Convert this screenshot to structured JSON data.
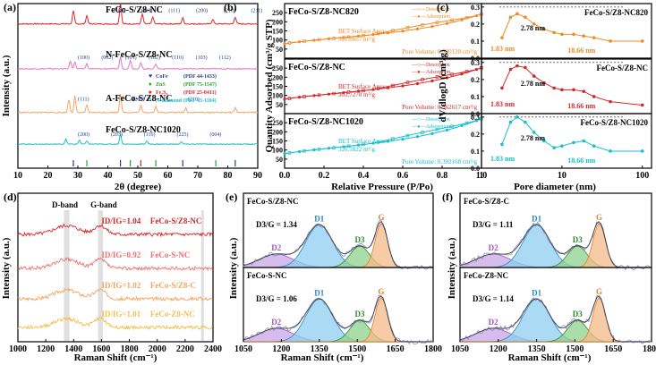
{
  "chart_data": [
    {
      "id": "a",
      "type": "line",
      "panel_label": "(a)",
      "xlabel": "2θ (degree)",
      "ylabel": "Intensity (a.u.)",
      "xlim": [
        10,
        90
      ],
      "xticks": [
        "10",
        "20",
        "30",
        "40",
        "50",
        "60",
        "70",
        "80",
        "90"
      ],
      "series": [
        {
          "name": "FeCo-S/Z8-NC",
          "color": "#d62728",
          "peaks": [
            {
              "x": 28.5,
              "h": 0.55
            },
            {
              "x": 33,
              "h": 0.35
            },
            {
              "x": 44.2,
              "h": 0.9
            },
            {
              "x": 51.5,
              "h": 0.4
            },
            {
              "x": 55,
              "h": 0.3
            },
            {
              "x": 65,
              "h": 0.25
            },
            {
              "x": 75,
              "h": 0.2
            },
            {
              "x": 82.5,
              "h": 0.3
            }
          ],
          "peak_labels": [
            "(100)",
            "(110)",
            "(111)",
            "(200)",
            "(210)",
            "(211)"
          ]
        },
        {
          "name": "N-FeCo-S/Z8-NC",
          "color": "#e377c2",
          "peaks": [
            {
              "x": 27.5,
              "h": 0.4
            },
            {
              "x": 29,
              "h": 0.35
            },
            {
              "x": 33,
              "h": 0.25
            },
            {
              "x": 44.2,
              "h": 0.6
            },
            {
              "x": 47.5,
              "h": 0.45
            },
            {
              "x": 51,
              "h": 0.3
            },
            {
              "x": 56,
              "h": 0.25
            }
          ],
          "peak_labels": [
            "(100)",
            "(002)",
            "(101)",
            "(102)",
            "(110)",
            "(103)",
            "(112)"
          ]
        },
        {
          "name": "A-FeCo-S/Z8-NC",
          "color": "#f4a460",
          "peaks": [
            {
              "x": 27,
              "h": 0.55
            },
            {
              "x": 29,
              "h": 0.7
            },
            {
              "x": 33,
              "h": 0.3
            },
            {
              "x": 44.2,
              "h": 0.8
            },
            {
              "x": 51,
              "h": 0.3
            },
            {
              "x": 56,
              "h": 0.25
            },
            {
              "x": 66,
              "h": 0.2
            },
            {
              "x": 82.5,
              "h": 0.2
            }
          ],
          "peak_labels": [
            "(111)",
            "(200)",
            "(210)"
          ]
        },
        {
          "name": "FeCo-S/Z8-NC1020",
          "color": "#17becf",
          "peaks": [
            {
              "x": 26,
              "h": 0.3
            },
            {
              "x": 30.5,
              "h": 0.25
            },
            {
              "x": 33,
              "h": 0.2
            },
            {
              "x": 44.2,
              "h": 0.6
            },
            {
              "x": 53,
              "h": 0.2
            },
            {
              "x": 64.5,
              "h": 0.15
            }
          ],
          "peak_labels": [
            "(200)",
            "(203)",
            "(110)",
            "(225)",
            "(004)"
          ]
        }
      ],
      "legend": [
        {
          "marker": "♥",
          "color": "#1f3f8f",
          "text": "CoFe",
          "ref": "(PDF 44-1433)"
        },
        {
          "marker": "♦",
          "color": "#2ca02c",
          "text": "ZnS",
          "ref": "(PDF 75-1547)"
        },
        {
          "marker": "♠",
          "color": "#d62728",
          "text": "Fe₇S₈",
          "ref": "(PDF 25-0411)"
        },
        {
          "marker": "*",
          "color": "#17becf",
          "text": "N-diamond",
          "ref": "(PDF 43-1104)"
        }
      ]
    },
    {
      "id": "b",
      "type": "line",
      "panel_label": "(b)",
      "xlabel": "Relative Pressure (P/Po)",
      "ylabel": "Quantity Adsorbed (cm³/g STP)",
      "xlim": [
        0.0,
        1.0
      ],
      "xticks": [
        "0.0",
        "0.2",
        "0.4",
        "0.6",
        "0.8",
        "1.0"
      ],
      "ylim": [
        0,
        300
      ],
      "yticks": [
        "0",
        "50",
        "100",
        "150",
        "200",
        "250"
      ],
      "subplots": [
        {
          "name": "FeCo-S/Z8-NC820",
          "color": "#f08a24",
          "bet": "BET Surface Area:",
          "bet_value": "301.8667 m²/g",
          "pore_volume": "Pore Volume: 0.330120 cm³/g",
          "adsorption_start": 80,
          "adsorption_end": 220
        },
        {
          "name": "FeCo-S/Z8-NC",
          "color": "#d62728",
          "bet": "BET Surface Area:",
          "bet_value": "303.7270 m²/g",
          "pore_volume": "Pore Volume: 0.362617 cm³/g",
          "adsorption_start": 80,
          "adsorption_end": 230
        },
        {
          "name": "FeCo-S/Z8-NC1020",
          "color": "#17becf",
          "bet": "BET Surface Area:",
          "bet_value": "326.1822 m²/g",
          "pore_volume": "Pore Volume: 0.392168 cm³/g",
          "adsorption_start": 80,
          "adsorption_end": 250
        }
      ],
      "legend": [
        "Desorption",
        "Adsorption"
      ]
    },
    {
      "id": "c",
      "type": "line",
      "panel_label": "(c)",
      "xlabel": "Pore diameter (nm)",
      "ylabel": "dV/dlogD (cm³/g)",
      "xscale": "log",
      "xticks": [
        "1",
        "10",
        "100"
      ],
      "ylim": [
        0.0,
        0.3
      ],
      "yticks": [
        "0.0",
        "0.1",
        "0.2",
        "0.3"
      ],
      "subplots": [
        {
          "name": "FeCo-S/Z8-NC820",
          "color": "#f08a24",
          "labels": [
            "1.83 nm",
            "2.78 nm",
            "18.66 nm"
          ],
          "x": [
            1.8,
            2.3,
            2.78,
            3.5,
            4.5,
            6,
            8,
            10,
            14,
            18.66,
            25,
            40,
            100
          ],
          "y": [
            0.12,
            0.24,
            0.26,
            0.24,
            0.2,
            0.17,
            0.15,
            0.14,
            0.14,
            0.13,
            0.12,
            0.1,
            0.1
          ]
        },
        {
          "name": "FeCo-S/Z8-NC",
          "color": "#d62728",
          "labels": [
            "1.83 nm",
            "2.78 nm",
            "18.66 nm"
          ],
          "x": [
            1.8,
            2.3,
            2.78,
            3.5,
            4.5,
            6,
            8,
            10,
            14,
            18.66,
            25,
            40,
            100
          ],
          "y": [
            0.15,
            0.26,
            0.28,
            0.27,
            0.22,
            0.18,
            0.15,
            0.14,
            0.14,
            0.13,
            0.1,
            0.07,
            0.05
          ]
        },
        {
          "name": "FeCo-S/Z8-NC1020",
          "color": "#17becf",
          "labels": [
            "1.83 nm",
            "2.78 nm",
            "18.66 nm"
          ],
          "x": [
            1.8,
            2.3,
            2.78,
            3.5,
            4.5,
            6,
            8,
            10,
            14,
            18.66,
            25,
            40,
            100
          ],
          "y": [
            0.14,
            0.27,
            0.3,
            0.27,
            0.21,
            0.16,
            0.12,
            0.13,
            0.15,
            0.16,
            0.13,
            0.1,
            0.1
          ]
        }
      ]
    },
    {
      "id": "d",
      "type": "line",
      "panel_label": "(d)",
      "xlabel": "Raman Shift (cm⁻¹)",
      "ylabel": "Intensity (a.u.)",
      "xlim": [
        1000,
        2400
      ],
      "xticks": [
        "1000",
        "1200",
        "1400",
        "1600",
        "1800",
        "2000",
        "2200",
        "2400"
      ],
      "band_labels": [
        "D-band",
        "G-band"
      ],
      "series": [
        {
          "name": "FeCo-S/Z8-NC",
          "ratio": "ID/IG=1.04",
          "color": "#d62728"
        },
        {
          "name": "FeCo-S-NC",
          "ratio": "ID/IG=0.92",
          "color": "#f07070"
        },
        {
          "name": "FeCo-S/Z8-C",
          "ratio": "ID/IG=1.02",
          "color": "#f4a460"
        },
        {
          "name": "FeCo-Z8-NC",
          "ratio": "ID/IG=1.01",
          "color": "#f0c050"
        }
      ]
    },
    {
      "id": "e",
      "type": "area",
      "panel_label": "(e)",
      "xlabel": "Raman Shift (cm⁻¹)",
      "ylabel": "Intensity (a.u.)",
      "xlim": [
        1050,
        1800
      ],
      "xticks": [
        "1050",
        "1200",
        "1350",
        "1500",
        "1650",
        "1800"
      ],
      "subplots": [
        {
          "name": "FeCo-S/Z8-NC",
          "ratio": "D3/G = 1.34"
        },
        {
          "name": "FeCo-S-NC",
          "ratio": "D3/G = 1.06"
        }
      ],
      "components": [
        "D1",
        "D2",
        "D3",
        "G"
      ]
    },
    {
      "id": "f",
      "type": "area",
      "panel_label": "(f)",
      "xlabel": "Raman Shift (cm⁻¹)",
      "ylabel": "Intensity (a.u.)",
      "xlim": [
        1050,
        1800
      ],
      "xticks": [
        "1050",
        "1200",
        "1350",
        "1500",
        "1650",
        "1800"
      ],
      "subplots": [
        {
          "name": "FeCo-S/Z8-C",
          "ratio": "D3/G = 1.11"
        },
        {
          "name": "FeCo-Z8-NC",
          "ratio": "D3/G = 1.14"
        }
      ],
      "components": [
        "D1",
        "D2",
        "D3",
        "G"
      ]
    }
  ]
}
